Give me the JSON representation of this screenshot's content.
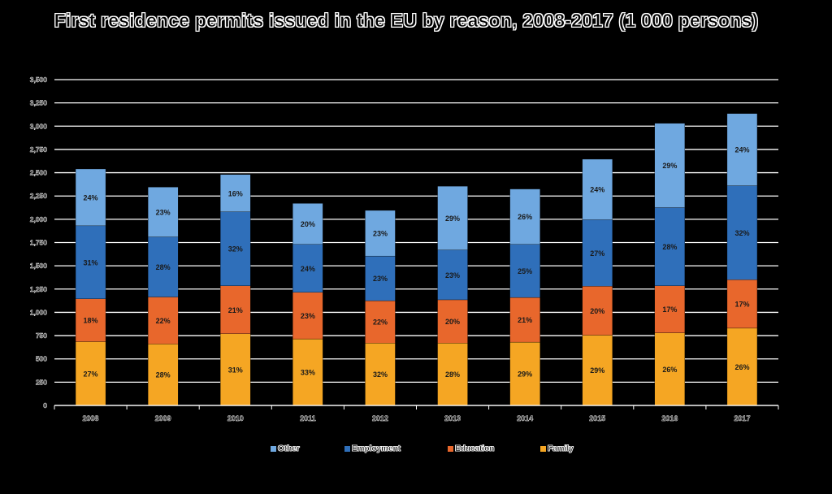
{
  "chart_data": {
    "type": "bar",
    "stacked": true,
    "title": "First residence permits issued in the EU by reason, 2008-2017 (1 000 persons)",
    "xlabel": "",
    "ylabel": "",
    "ylim": [
      0,
      3500
    ],
    "yticks": [
      0,
      250,
      500,
      750,
      1000,
      1250,
      1500,
      1750,
      2000,
      2250,
      2500,
      2750,
      3000,
      3250,
      3500
    ],
    "ytick_labels": [
      "0",
      "250",
      "500",
      "750",
      "1,000",
      "1,250",
      "1,500",
      "1,750",
      "2,000",
      "2,250",
      "2,500",
      "2,750",
      "3,000",
      "3,250",
      "3,500"
    ],
    "categories": [
      "2008",
      "2009",
      "2010",
      "2011",
      "2012",
      "2013",
      "2014",
      "2015",
      "2016",
      "2017"
    ],
    "grid": true,
    "legend_position": "bottom",
    "series": [
      {
        "name": "Family",
        "color": "#f5a623",
        "values": [
          685,
          660,
          770,
          715,
          670,
          670,
          680,
          755,
          780,
          830
        ],
        "labels": [
          "27%",
          "28%",
          "31%",
          "33%",
          "32%",
          "28%",
          "29%",
          "29%",
          "26%",
          "26%"
        ]
      },
      {
        "name": "Education",
        "color": "#e8672c",
        "values": [
          460,
          505,
          515,
          500,
          455,
          465,
          480,
          525,
          505,
          520
        ],
        "labels": [
          "18%",
          "22%",
          "21%",
          "23%",
          "22%",
          "20%",
          "21%",
          "20%",
          "17%",
          "17%"
        ]
      },
      {
        "name": "Employment",
        "color": "#2f6fba",
        "values": [
          785,
          645,
          795,
          515,
          480,
          535,
          570,
          715,
          840,
          1010
        ],
        "labels": [
          "31%",
          "28%",
          "32%",
          "24%",
          "23%",
          "23%",
          "25%",
          "27%",
          "28%",
          "32%"
        ]
      },
      {
        "name": "Other",
        "color": "#6fa8e0",
        "values": [
          610,
          535,
          400,
          440,
          490,
          685,
          595,
          650,
          905,
          775
        ],
        "labels": [
          "24%",
          "23%",
          "16%",
          "20%",
          "23%",
          "29%",
          "26%",
          "24%",
          "29%",
          "24%"
        ]
      }
    ],
    "legend_order": [
      "Other",
      "Employment",
      "Education",
      "Family"
    ]
  }
}
